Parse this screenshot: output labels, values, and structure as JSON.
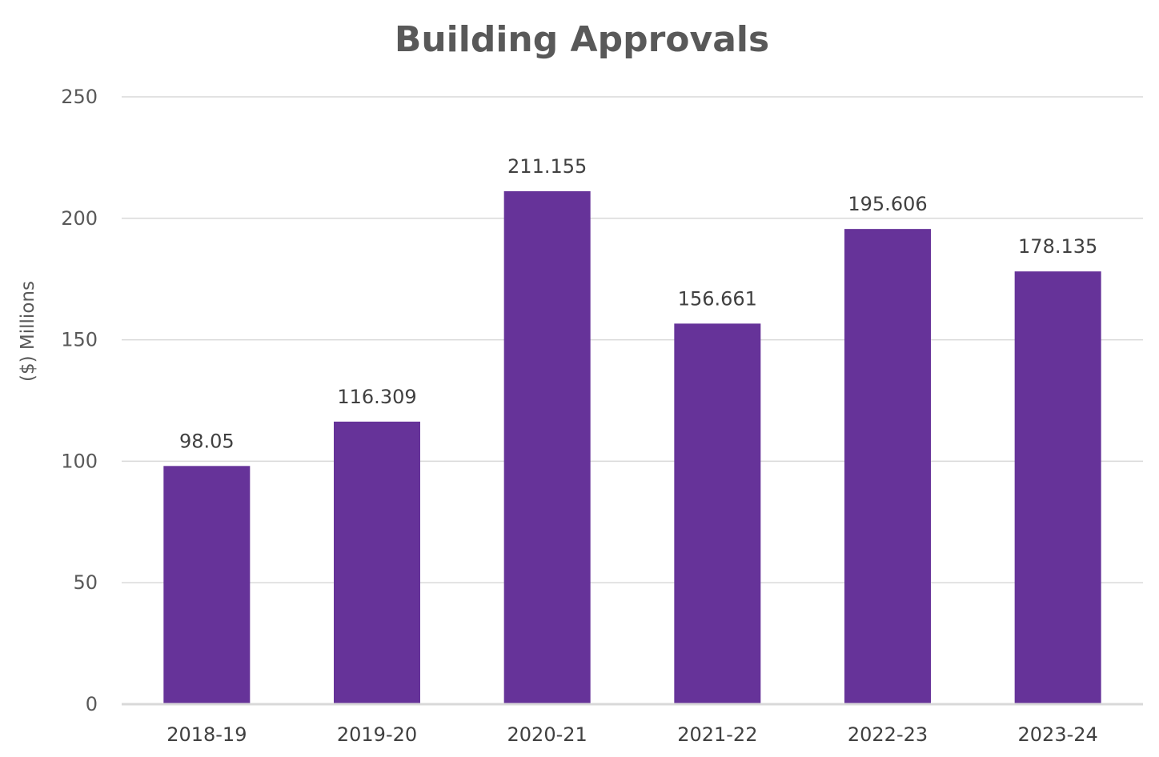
{
  "chart_data": {
    "type": "bar",
    "title": "Building Approvals",
    "xlabel": "",
    "ylabel": "($) Millions",
    "categories": [
      "2018-19",
      "2019-20",
      "2020-21",
      "2021-22",
      "2022-23",
      "2023-24"
    ],
    "values": [
      98.05,
      116.309,
      211.155,
      156.661,
      195.606,
      178.135
    ],
    "value_labels": [
      "98.05",
      "116.309",
      "211.155",
      "156.661",
      "195.606",
      "178.135"
    ],
    "ylim": [
      0,
      250
    ],
    "yticks": [
      0,
      50,
      100,
      150,
      200,
      250
    ],
    "grid": true,
    "legend": "none",
    "colors": {
      "bar": "#663399",
      "grid": "#d9d9d9",
      "title": "#595959",
      "text": "#404040"
    }
  }
}
